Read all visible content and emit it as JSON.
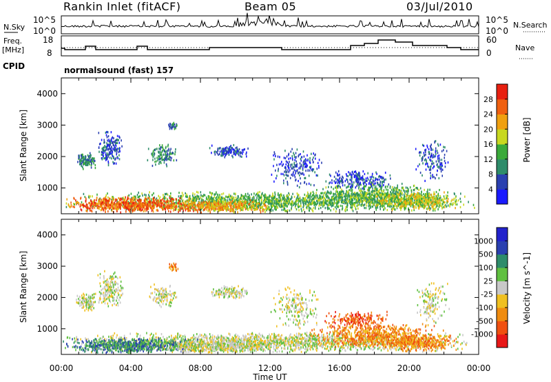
{
  "header": {
    "title_left": "Rankin Inlet (fitACF)",
    "title_center": "Beam 05",
    "title_right": "03/Jul/2010",
    "cpid_label": "CPID",
    "cpid_value": "normalsound (fast) 157"
  },
  "strips": {
    "nsky_label": "N.Sky",
    "nsky_ticks": [
      "10^5",
      "10^0"
    ],
    "nsearch_label": "N.Search",
    "nsearch_ticks": [
      "10^5",
      "10^0"
    ],
    "freq_label_1": "Freq.",
    "freq_label_2": "[MHz]",
    "freq_ticks": [
      "18",
      "8"
    ],
    "nave_label": "Nave",
    "nave_ticks": [
      "60",
      "0"
    ]
  },
  "colors": {
    "power_scale": [
      "#1a1aff",
      "#2a40b0",
      "#2e8c6a",
      "#3aaa3a",
      "#c8d820",
      "#f0a010",
      "#f06010",
      "#e82010"
    ],
    "velocity_scale": [
      "#e81818",
      "#f05010",
      "#f08c10",
      "#f0c020",
      "#c8c8c8",
      "#60c040",
      "#2e8c6a",
      "#2a40b0",
      "#2222cc"
    ]
  },
  "chart_data": [
    {
      "type": "heatmap",
      "panel": "power",
      "ylabel": "Slant Range [km]",
      "xlabel": "",
      "x_ticks": [
        "00:00",
        "04:00",
        "08:00",
        "12:00",
        "16:00",
        "20:00",
        "00:00"
      ],
      "xlim": [
        "00:00",
        "24:00"
      ],
      "y_ticks": [
        "1000",
        "2000",
        "3000",
        "4000"
      ],
      "ylim": [
        180,
        4500
      ],
      "colorbar": {
        "label": "Power [dB]",
        "ticks": [
          "4",
          "8",
          "12",
          "16",
          "20",
          "24",
          "28"
        ],
        "range": [
          0,
          32
        ]
      }
    },
    {
      "type": "heatmap",
      "panel": "velocity",
      "ylabel": "Slant Range [km]",
      "xlabel": "Time UT",
      "x_ticks": [
        "00:00",
        "04:00",
        "08:00",
        "12:00",
        "16:00",
        "20:00",
        "00:00"
      ],
      "xlim": [
        "00:00",
        "24:00"
      ],
      "y_ticks": [
        "1000",
        "2000",
        "3000",
        "4000"
      ],
      "ylim": [
        180,
        4500
      ],
      "colorbar": {
        "label": "Velocity [m s^-1]",
        "ticks": [
          "-1000",
          "-500",
          "-100",
          "-25",
          "25",
          "100",
          "500",
          "1000"
        ]
      }
    }
  ]
}
